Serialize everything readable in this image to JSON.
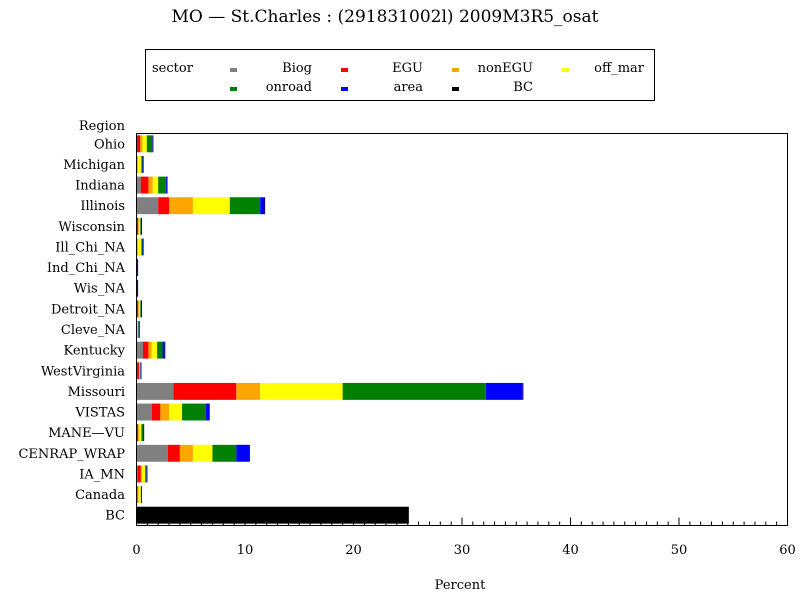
{
  "chart_data": {
    "type": "bar",
    "orientation": "horizontal",
    "stacked": true,
    "title": "MO  —  St.Charles  :  (291831002l)  2009M3R5_osat",
    "xlabel": "Percent",
    "ylabel": "Region",
    "xlim": [
      0,
      60
    ],
    "x_ticks": [
      0,
      10,
      20,
      30,
      40,
      50,
      60
    ],
    "x_minor_step": 1,
    "grid": false,
    "legend_title": "sector",
    "legend_position": "top",
    "categories": [
      "Ohio",
      "Michigan",
      "Indiana",
      "Illinois",
      "Wisconsin",
      "Ill_Chi_NA",
      "Ind_Chi_NA",
      "Wis_NA",
      "Detroit_NA",
      "Cleve_NA",
      "Kentucky",
      "WestVirginia",
      "Missouri",
      "VISTAS",
      "MANE—VU",
      "CENRAP_WRAP",
      "IA_MN",
      "Canada",
      "BC"
    ],
    "series": [
      {
        "name": "Biog",
        "color": "#808080",
        "values": [
          0.05,
          0.05,
          0.4,
          2.0,
          0.05,
          0.05,
          0.0,
          0.0,
          0.05,
          0.05,
          0.6,
          0.05,
          3.4,
          1.4,
          0.05,
          2.9,
          0.1,
          0.05,
          0
        ]
      },
      {
        "name": "EGU",
        "color": "#ff0000",
        "values": [
          0.3,
          0.0,
          0.7,
          1.0,
          0.1,
          0.0,
          0.0,
          0.0,
          0.1,
          0.0,
          0.5,
          0.2,
          5.8,
          0.8,
          0.1,
          1.1,
          0.3,
          0.05,
          0
        ]
      },
      {
        "name": "nonEGU",
        "color": "#ffa500",
        "values": [
          0.2,
          0.1,
          0.4,
          2.2,
          0.1,
          0.1,
          0.0,
          0.0,
          0.1,
          0.05,
          0.3,
          0.05,
          2.2,
          0.8,
          0.1,
          1.2,
          0.1,
          0.1,
          0
        ]
      },
      {
        "name": "off_mar",
        "color": "#ffff00",
        "values": [
          0.4,
          0.3,
          0.5,
          3.4,
          0.1,
          0.3,
          0.0,
          0.0,
          0.1,
          0.05,
          0.5,
          0.05,
          7.6,
          1.2,
          0.2,
          1.8,
          0.3,
          0.2,
          0
        ]
      },
      {
        "name": "onroad",
        "color": "#008000",
        "values": [
          0.5,
          0.1,
          0.7,
          2.8,
          0.05,
          0.1,
          0.0,
          0.0,
          0.05,
          0.05,
          0.5,
          0.0,
          13.2,
          2.2,
          0.15,
          2.2,
          0.1,
          0.05,
          0
        ]
      },
      {
        "name": "area",
        "color": "#0000ff",
        "values": [
          0.05,
          0.05,
          0.1,
          0.4,
          0.05,
          0.05,
          0.15,
          0.15,
          0.05,
          0.05,
          0.2,
          0.05,
          3.4,
          0.3,
          0.05,
          1.2,
          0.05,
          0.0,
          0
        ]
      },
      {
        "name": "BC",
        "color": "#000000",
        "values": [
          0.05,
          0.05,
          0.05,
          0.05,
          0.05,
          0.05,
          0.0,
          0.0,
          0.05,
          0.05,
          0.05,
          0.05,
          0.05,
          0.05,
          0.05,
          0.05,
          0.05,
          0.05,
          25.1
        ]
      }
    ]
  }
}
